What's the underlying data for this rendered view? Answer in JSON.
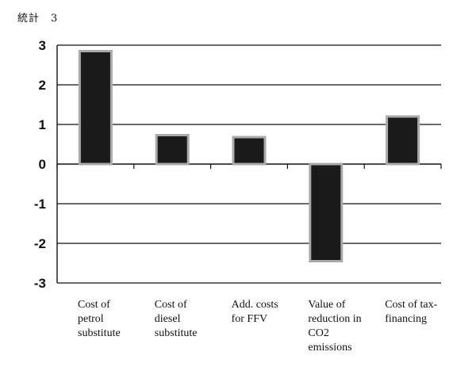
{
  "figure_label": "統計　3",
  "chart_data": {
    "type": "bar",
    "categories": [
      [
        "Cost of",
        "petrol",
        "substitute"
      ],
      [
        "Cost of",
        "diesel",
        "substitute"
      ],
      [
        "Add. costs",
        "for FFV"
      ],
      [
        "Value of",
        "reduction in",
        "CO2",
        "emissions"
      ],
      [
        "Cost of tax-",
        "financing"
      ]
    ],
    "values": [
      2.85,
      0.73,
      0.68,
      -2.45,
      1.2
    ],
    "title": "",
    "xlabel": "",
    "ylabel": "",
    "ylim": [
      -3,
      3
    ],
    "yticks": [
      "3",
      "2",
      "1",
      "0",
      "-1",
      "-2",
      "-3"
    ],
    "grid": true,
    "colors": {
      "bar_fill": "#1a1a1a",
      "bar_border": "#aaaaaa",
      "axis": "#111111"
    }
  }
}
